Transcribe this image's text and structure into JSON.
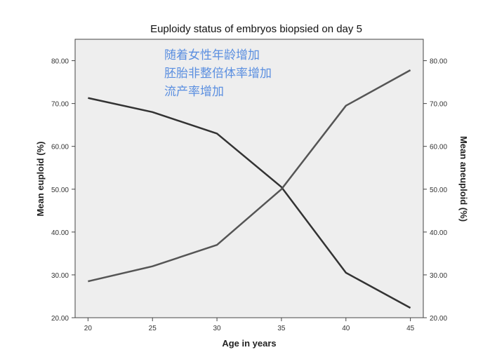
{
  "chart_data": {
    "type": "line",
    "title": "Euploidy status of embryos biopsied on day 5",
    "xlabel": "Age in years",
    "ylabel_left": "Mean euploid (%)",
    "ylabel_right": "Mean aneuploid (%)",
    "x": [
      20,
      25,
      30,
      35,
      40,
      45
    ],
    "xlim": [
      19,
      46
    ],
    "ylim": [
      20,
      85
    ],
    "y_ticks": [
      "20.00",
      "30.00",
      "40.00",
      "50.00",
      "60.00",
      "70.00",
      "80.00"
    ],
    "x_ticks": [
      "20",
      "25",
      "30",
      "35",
      "40",
      "45"
    ],
    "series": [
      {
        "values": [
          71.3,
          68.0,
          63.0,
          50.5,
          30.5,
          22.3
        ],
        "color": "#333333"
      },
      {
        "values": [
          28.5,
          32.0,
          37.0,
          50.0,
          69.5,
          77.8
        ],
        "color": "#555555"
      }
    ],
    "annotations": [
      "随着女性年龄增加",
      "胚胎非整倍体率增加",
      "流产率增加"
    ],
    "plot_background": "#eeeeee",
    "annotation_color": "#5b8fe0",
    "grid": false,
    "legend": "none"
  }
}
